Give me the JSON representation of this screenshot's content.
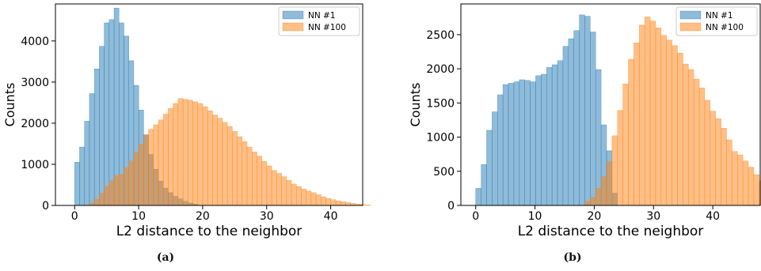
{
  "captions": [
    "(a)",
    "(b)"
  ],
  "chart_data": [
    {
      "type": "bar",
      "title": "",
      "xlabel": "L2 distance to the neighbor",
      "ylabel": "Counts",
      "xlim": [
        -3,
        45
      ],
      "ylim": [
        0,
        4900
      ],
      "xticks": [
        0,
        10,
        20,
        30,
        40
      ],
      "yticks": [
        0,
        1000,
        2000,
        3000,
        4000
      ],
      "legend": "top-right",
      "grid": false,
      "bin_width": 0.77,
      "series": [
        {
          "name": "NN #1",
          "color": "#1f77b4",
          "x_start": 0.0,
          "values": [
            1050,
            1420,
            2050,
            2720,
            3320,
            3870,
            4440,
            4520,
            4800,
            4440,
            4120,
            3520,
            2920,
            2320,
            1720,
            1240,
            880,
            590,
            420,
            310,
            220,
            160,
            100,
            60,
            30
          ]
        },
        {
          "name": "NN #100",
          "color": "#ff7f0e",
          "x_start": 2.3,
          "values": [
            50,
            150,
            290,
            460,
            600,
            720,
            760,
            920,
            1080,
            1280,
            1490,
            1700,
            1850,
            1960,
            2080,
            2220,
            2360,
            2480,
            2600,
            2580,
            2560,
            2520,
            2480,
            2400,
            2300,
            2200,
            2120,
            2020,
            1920,
            1800,
            1670,
            1550,
            1420,
            1300,
            1200,
            1070,
            960,
            850,
            780,
            700,
            610,
            520,
            460,
            400,
            350,
            310,
            260,
            210,
            170,
            140,
            110,
            90,
            70,
            50,
            30,
            20,
            10
          ]
        }
      ]
    },
    {
      "type": "bar",
      "title": "",
      "xlabel": "L2 distance to the neighbor",
      "ylabel": "Counts",
      "xlim": [
        -2.5,
        48
      ],
      "ylim": [
        0,
        2950
      ],
      "xticks": [
        0,
        10,
        20,
        30,
        40
      ],
      "yticks": [
        0,
        500,
        1000,
        1500,
        2000,
        2500
      ],
      "legend": "top-right",
      "grid": false,
      "bin_width": 0.92,
      "series": [
        {
          "name": "NN #1",
          "color": "#1f77b4",
          "x_start": 0.0,
          "values": [
            250,
            600,
            1100,
            1370,
            1620,
            1770,
            1790,
            1810,
            1840,
            1830,
            1810,
            1900,
            1920,
            2020,
            2060,
            2120,
            2330,
            2440,
            2560,
            2790,
            2770,
            2540,
            1990,
            1180,
            800,
            180
          ]
        },
        {
          "name": "NN #100",
          "color": "#ff7f0e",
          "x_start": 18.4,
          "values": [
            60,
            120,
            250,
            420,
            640,
            1020,
            1390,
            1780,
            2140,
            2380,
            2640,
            2760,
            2700,
            2600,
            2490,
            2420,
            2340,
            2230,
            2070,
            1990,
            1850,
            1720,
            1540,
            1380,
            1270,
            1130,
            960,
            790,
            740,
            650,
            560,
            450,
            360,
            300,
            210,
            120,
            60
          ]
        }
      ]
    }
  ]
}
